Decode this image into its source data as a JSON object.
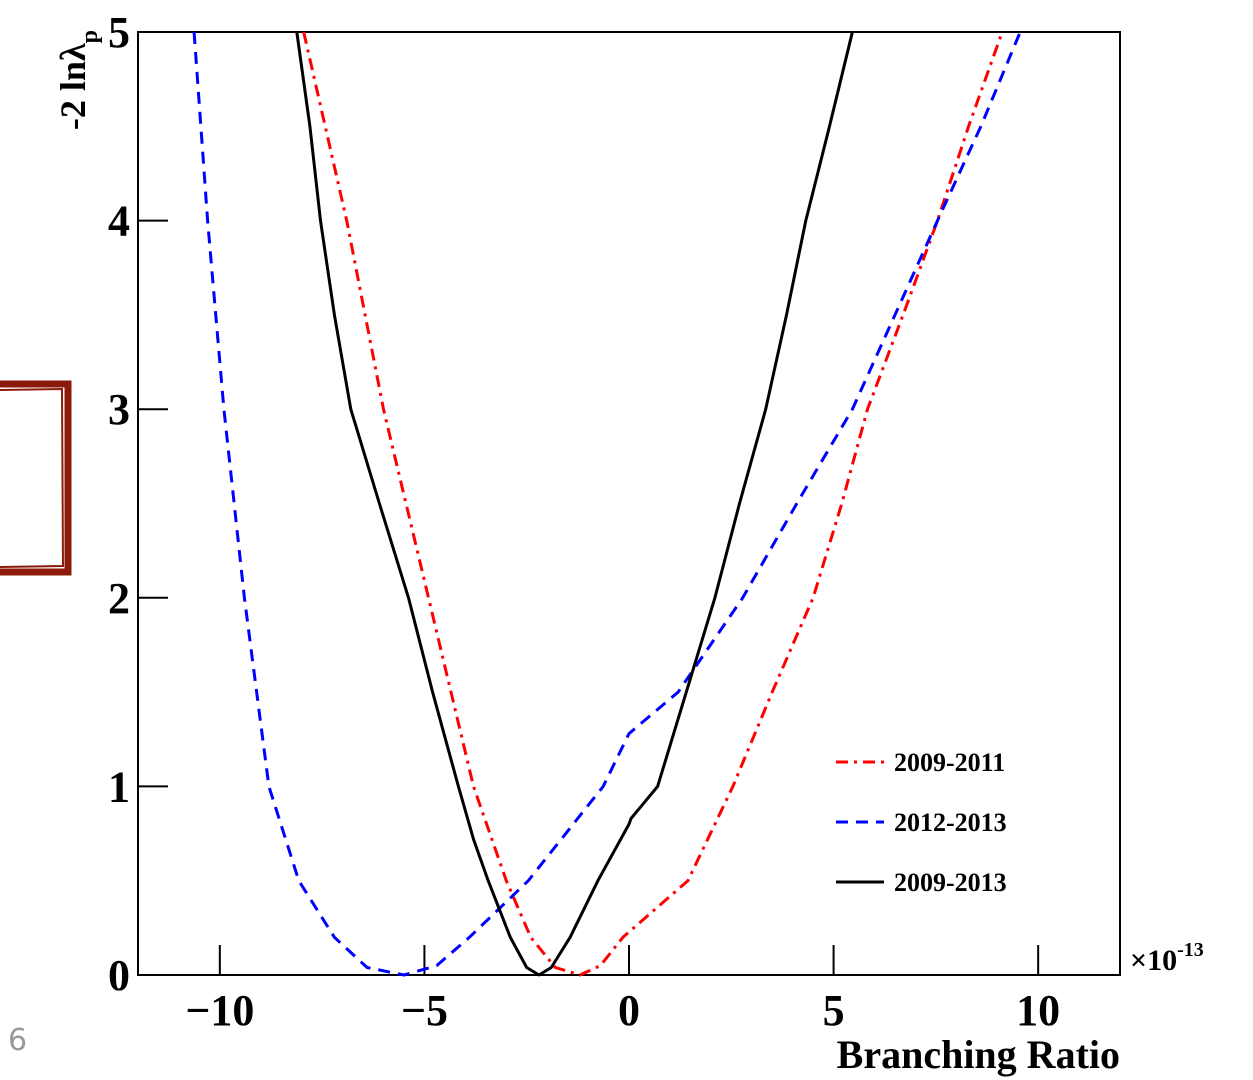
{
  "page_number": "6",
  "chart_data": {
    "type": "line",
    "x_label": "Branching Ratio",
    "x_multiplier": "×10",
    "x_multiplier_exp": "-13",
    "y_label": "-2 lnλ",
    "y_label_sub": "p",
    "xlim": [
      -12,
      12
    ],
    "ylim": [
      0,
      5
    ],
    "xticks": [
      {
        "value": -10,
        "label": "−10"
      },
      {
        "value": -5,
        "label": "−5"
      },
      0,
      5,
      10
    ],
    "yticks": [
      0,
      1,
      2,
      3,
      4,
      5
    ],
    "legend": "right",
    "series": [
      {
        "name": "2009-2011",
        "color": "#ff0000",
        "dash": "dashdot",
        "x": [
          -7.95,
          -6.9,
          -6.0,
          -4.9,
          -3.8,
          -3.0,
          -2.4,
          -1.8,
          -1.2,
          -0.7,
          -0.15,
          1.44,
          2.54,
          3.5,
          4.5,
          5.2,
          5.83,
          6.7,
          7.54,
          8.3,
          9.12
        ],
        "values": [
          5,
          4,
          3,
          2,
          1,
          0.5,
          0.2,
          0.04,
          0,
          0.05,
          0.2,
          0.5,
          1,
          1.5,
          2,
          2.5,
          3,
          3.5,
          4,
          4.5,
          5
        ]
      },
      {
        "name": "2012-2013",
        "color": "#0000ff",
        "dash": "dashed",
        "x": [
          -10.63,
          -10.3,
          -9.9,
          -9.4,
          -8.8,
          -8.07,
          -7.2,
          -6.4,
          -5.5,
          -4.7,
          -3.9,
          -2.46,
          -0.63,
          0,
          1.2,
          2.78,
          4.1,
          5.46,
          6.5,
          7.54,
          8.6,
          9.56
        ],
        "values": [
          5,
          4,
          3,
          2,
          1,
          0.5,
          0.2,
          0.04,
          0,
          0.05,
          0.2,
          0.5,
          1,
          1.28,
          1.5,
          2,
          2.5,
          3,
          3.5,
          4,
          4.5,
          5
        ]
      },
      {
        "name": "2009-2013",
        "color": "#000000",
        "dash": "solid",
        "x": [
          -8.12,
          -7.8,
          -7.54,
          -7.2,
          -6.8,
          -6.1,
          -5.39,
          -4.8,
          -4.17,
          -3.8,
          -3.44,
          -2.9,
          -2.5,
          -2.2,
          -1.9,
          -1.44,
          -0.76,
          0,
          0.05,
          0.7,
          1.4,
          2.1,
          2.7,
          3.34,
          3.85,
          4.32,
          4.9,
          5.46
        ],
        "values": [
          5,
          4.5,
          4,
          3.5,
          3,
          2.5,
          2,
          1.5,
          1,
          0.72,
          0.5,
          0.2,
          0.04,
          0,
          0.04,
          0.2,
          0.5,
          0.8,
          0.83,
          1,
          1.5,
          2,
          2.5,
          3,
          3.5,
          4,
          4.5,
          5
        ]
      }
    ]
  }
}
